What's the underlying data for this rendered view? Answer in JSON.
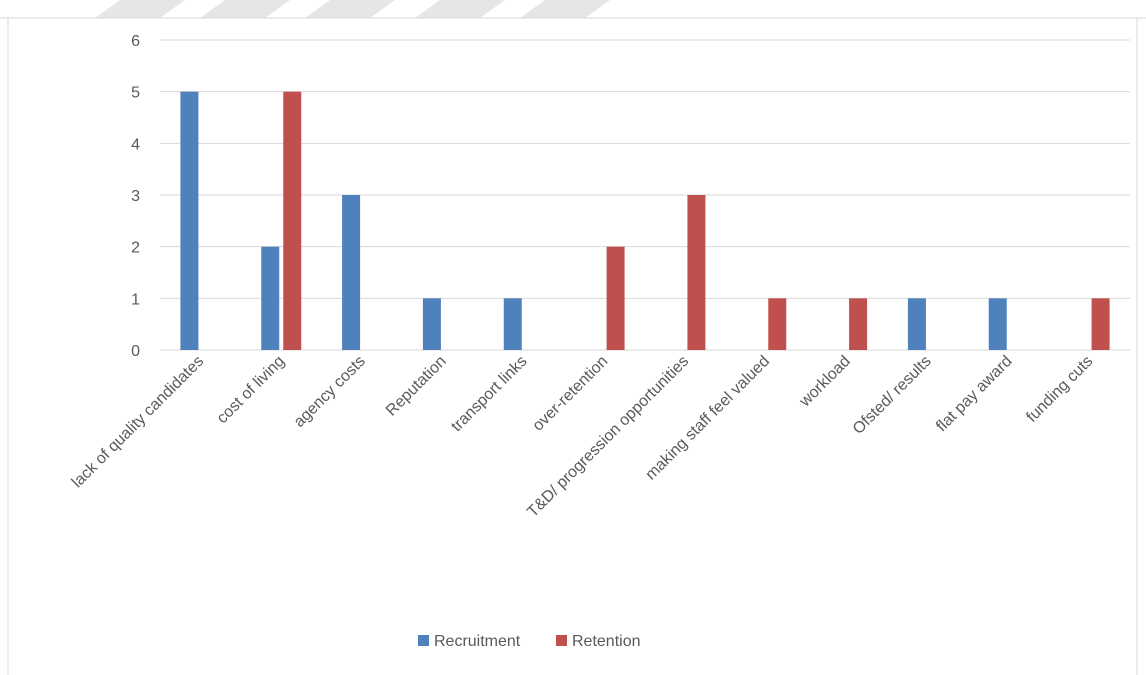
{
  "chart_data": {
    "type": "bar",
    "categories": [
      "lack of quality candidates",
      "cost of living",
      "agency costs",
      "Reputation",
      "transport links",
      "over-retention",
      "T&D/ progression opportunities",
      "making staff feel valued",
      "workload",
      "Ofsted/ results",
      "flat pay award",
      "funding cuts"
    ],
    "series": [
      {
        "name": "Recruitment",
        "color": "#4f81bd",
        "values": [
          5,
          2,
          3,
          1,
          1,
          0,
          0,
          0,
          0,
          1,
          1,
          0
        ]
      },
      {
        "name": "Retention",
        "color": "#c0504d",
        "values": [
          0,
          5,
          0,
          0,
          0,
          2,
          3,
          1,
          1,
          0,
          0,
          1
        ]
      }
    ],
    "y_ticks": [
      "0",
      "1",
      "2",
      "3",
      "4",
      "5",
      "6"
    ],
    "ylim": [
      0,
      6
    ],
    "grid": true,
    "legend_position": "bottom"
  }
}
